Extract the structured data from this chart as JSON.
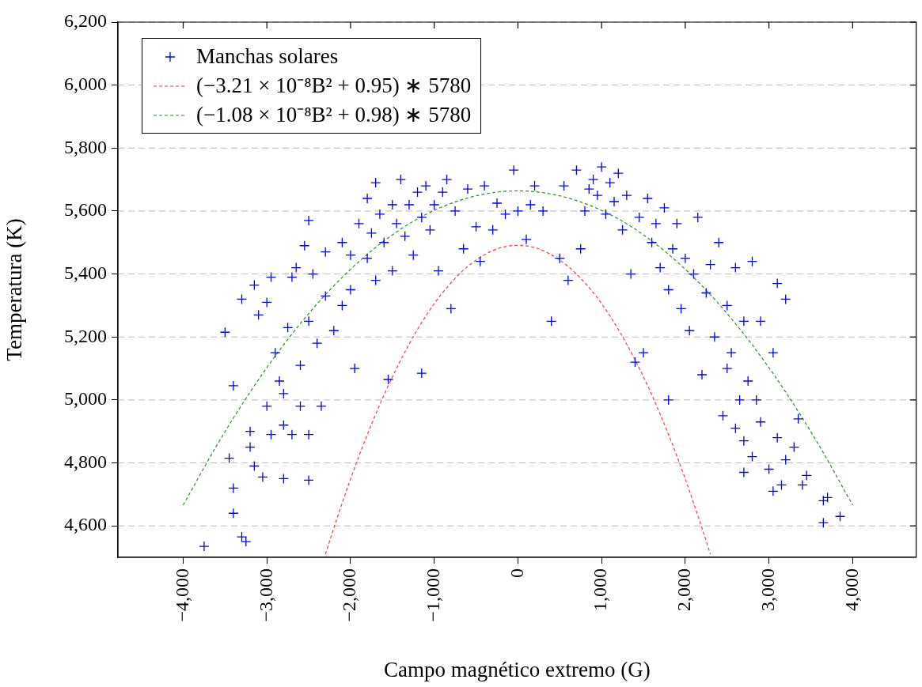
{
  "chart_data": {
    "type": "scatter",
    "xlabel": "Campo magnético extremo (G)",
    "ylabel": "Temperatura (K)",
    "xlim": [
      -4780,
      4760
    ],
    "xticks": [
      {
        "value": -4000,
        "label": "−4,000"
      },
      {
        "value": -3000,
        "label": "−3,000"
      },
      {
        "value": -2000,
        "label": "−2,000"
      },
      {
        "value": -1000,
        "label": "−1,000"
      },
      {
        "value": 0,
        "label": "0"
      },
      {
        "value": 1000,
        "label": "1,000"
      },
      {
        "value": 2000,
        "label": "2,000"
      },
      {
        "value": 3000,
        "label": "3,000"
      },
      {
        "value": 4000,
        "label": "4,000"
      }
    ],
    "ylim": [
      4500,
      6200
    ],
    "yticks": [
      {
        "value": 4600,
        "label": "4,600"
      },
      {
        "value": 4800,
        "label": "4,800"
      },
      {
        "value": 5000,
        "label": "5,000"
      },
      {
        "value": 5200,
        "label": "5,200"
      },
      {
        "value": 5400,
        "label": "5,400"
      },
      {
        "value": 5600,
        "label": "5,600"
      },
      {
        "value": 5800,
        "label": "5,800"
      },
      {
        "value": 6000,
        "label": "6,000"
      },
      {
        "value": 6200,
        "label": "6,200"
      }
    ],
    "grid": "y",
    "legend": "top left",
    "series": [
      {
        "name": "Manchas solares",
        "marker": "cross",
        "color": "#0000ff",
        "x": [
          -3750,
          -3500,
          -3450,
          -3400,
          -3400,
          -3400,
          -3300,
          -3250,
          -3300,
          -3200,
          -3200,
          -3150,
          -3150,
          -3100,
          -3050,
          -3000,
          -3000,
          -2950,
          -2950,
          -2900,
          -2850,
          -2800,
          -2800,
          -2800,
          -2750,
          -2700,
          -2700,
          -2650,
          -2600,
          -2600,
          -2550,
          -2500,
          -2500,
          -2500,
          -2500,
          -2450,
          -2400,
          -2350,
          -2300,
          -2300,
          -2200,
          -2100,
          -2100,
          -2000,
          -2000,
          -1950,
          -1900,
          -1800,
          -1800,
          -1750,
          -1700,
          -1700,
          -1650,
          -1600,
          -1550,
          -1500,
          -1500,
          -1450,
          -1400,
          -1350,
          -1300,
          -1250,
          -1200,
          -1150,
          -1150,
          -1100,
          -1050,
          -1000,
          -950,
          -900,
          -850,
          -800,
          -750,
          -650,
          -600,
          -500,
          -450,
          -400,
          -300,
          -250,
          -150,
          -50,
          0,
          100,
          150,
          200,
          300,
          400,
          500,
          550,
          600,
          700,
          750,
          800,
          850,
          900,
          950,
          1000,
          1050,
          1100,
          1150,
          1200,
          1250,
          1300,
          1350,
          1400,
          1450,
          1500,
          1550,
          1600,
          1650,
          1700,
          1750,
          1800,
          1800,
          1850,
          1900,
          1950,
          2000,
          2050,
          2100,
          2150,
          2200,
          2250,
          2300,
          2350,
          2400,
          2450,
          2500,
          2500,
          2550,
          2600,
          2600,
          2650,
          2700,
          2700,
          2700,
          2750,
          2800,
          2800,
          2850,
          2900,
          2900,
          3000,
          3050,
          3050,
          3100,
          3100,
          3150,
          3200,
          3200,
          3300,
          3350,
          3400,
          3450,
          3650,
          3650,
          3700,
          3850
        ],
        "values": [
          4535,
          5215,
          4815,
          5045,
          4640,
          4720,
          4565,
          4550,
          5320,
          4900,
          4850,
          5365,
          4790,
          5270,
          4755,
          4980,
          5310,
          5390,
          4890,
          5150,
          5060,
          4750,
          5020,
          4920,
          5230,
          5390,
          4890,
          5420,
          5110,
          4980,
          5490,
          5570,
          5250,
          4745,
          4890,
          5400,
          5180,
          4980,
          5330,
          5470,
          5220,
          5300,
          5500,
          5460,
          5350,
          5100,
          5560,
          5450,
          5640,
          5530,
          5380,
          5690,
          5590,
          5500,
          5065,
          5410,
          5620,
          5560,
          5700,
          5520,
          5620,
          5460,
          5660,
          5580,
          5085,
          5680,
          5540,
          5620,
          5410,
          5660,
          5700,
          5290,
          5600,
          5480,
          5670,
          5550,
          5440,
          5680,
          5540,
          5625,
          5590,
          5730,
          5600,
          5510,
          5620,
          5680,
          5600,
          5250,
          5450,
          5680,
          5380,
          5730,
          5480,
          5600,
          5670,
          5700,
          5650,
          5740,
          5590,
          5690,
          5630,
          5720,
          5540,
          5650,
          5400,
          5120,
          5580,
          5150,
          5640,
          5500,
          5560,
          5420,
          5610,
          5350,
          5000,
          5480,
          5560,
          5290,
          5450,
          5220,
          5400,
          5580,
          5080,
          5340,
          5430,
          5200,
          5500,
          4950,
          5300,
          5100,
          5150,
          4910,
          5420,
          5000,
          4870,
          4770,
          5250,
          5060,
          4820,
          5440,
          5000,
          4930,
          5250,
          4780,
          4710,
          5150,
          4880,
          5370,
          4730,
          4810,
          5320,
          4850,
          4940,
          4730,
          4760,
          4610,
          4680,
          4690,
          4630
        ]
      },
      {
        "name": "(−3.21 × 10⁻⁸B² + 0.95) ∗ 5780",
        "type": "line",
        "marker": "none",
        "line_style": "dashed",
        "color": "#ff3b3b",
        "x": [
          -2300,
          -2200,
          -2000,
          -1800,
          -1600,
          -1400,
          -1200,
          -1000,
          -800,
          -600,
          -400,
          -200,
          0,
          200,
          400,
          600,
          800,
          1000,
          1200,
          1400,
          1600,
          1800,
          2000,
          2200,
          2300
        ],
        "values": [
          4510,
          4593,
          4749,
          4890,
          5016,
          5127,
          5224,
          5306,
          5372,
          5424,
          5461,
          5484,
          5491,
          5484,
          5461,
          5424,
          5372,
          5306,
          5224,
          5127,
          5016,
          4890,
          4749,
          4593,
          4510
        ]
      },
      {
        "name": "(−1.08 × 10⁻⁸B² + 0.98) ∗ 5780",
        "type": "line",
        "marker": "none",
        "line_style": "dashed",
        "color": "#1f9a1f",
        "x": [
          -4000,
          -3600,
          -3200,
          -2800,
          -2400,
          -2000,
          -1600,
          -1200,
          -800,
          -400,
          0,
          400,
          800,
          1200,
          1600,
          2000,
          2400,
          2800,
          3200,
          3600,
          4000
        ],
        "values": [
          4666,
          4855,
          5025,
          5175,
          5305,
          5415,
          5505,
          5575,
          5624,
          5654,
          5664,
          5654,
          5624,
          5575,
          5505,
          5415,
          5305,
          5175,
          5025,
          4855,
          4666
        ]
      }
    ]
  }
}
